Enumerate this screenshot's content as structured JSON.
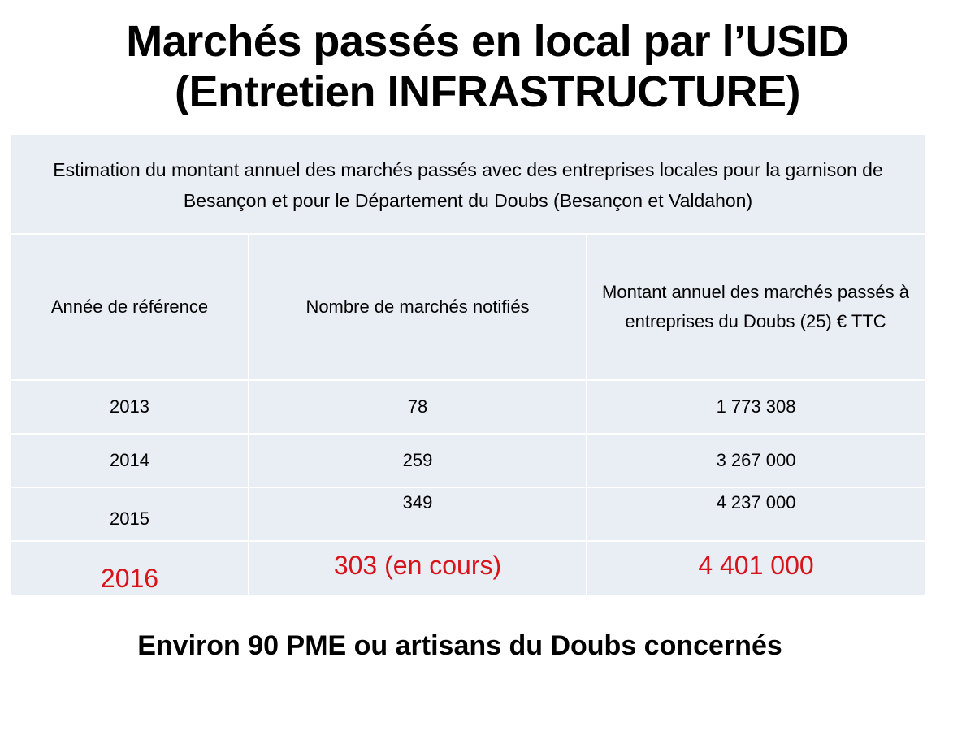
{
  "title": {
    "line1": "Marchés passés en local par l’USID",
    "line2": "(Entretien INFRASTRUCTURE)"
  },
  "table": {
    "caption": "Estimation du montant annuel des marchés passés avec des entreprises locales pour la garnison de Besançon et pour le Département du Doubs (Besançon et Valdahon)",
    "headers": [
      "Année de référence",
      "Nombre de marchés notifiés",
      "Montant annuel des marchés passés à entreprises du Doubs (25) € TTC"
    ],
    "rows": [
      [
        "2013",
        "78",
        "1 773 308"
      ],
      [
        "2014",
        "259",
        "3 267 000"
      ],
      [
        "2015",
        "349",
        "4 237 000"
      ],
      [
        "2016",
        "303 (en cours)",
        "4 401 000"
      ]
    ]
  },
  "footer": "Environ 90 PME ou artisans du Doubs concernés",
  "colors": {
    "table_fill": "#e9edf4",
    "highlight_red": "#d6141a",
    "grid_lines": "#ffffff"
  }
}
